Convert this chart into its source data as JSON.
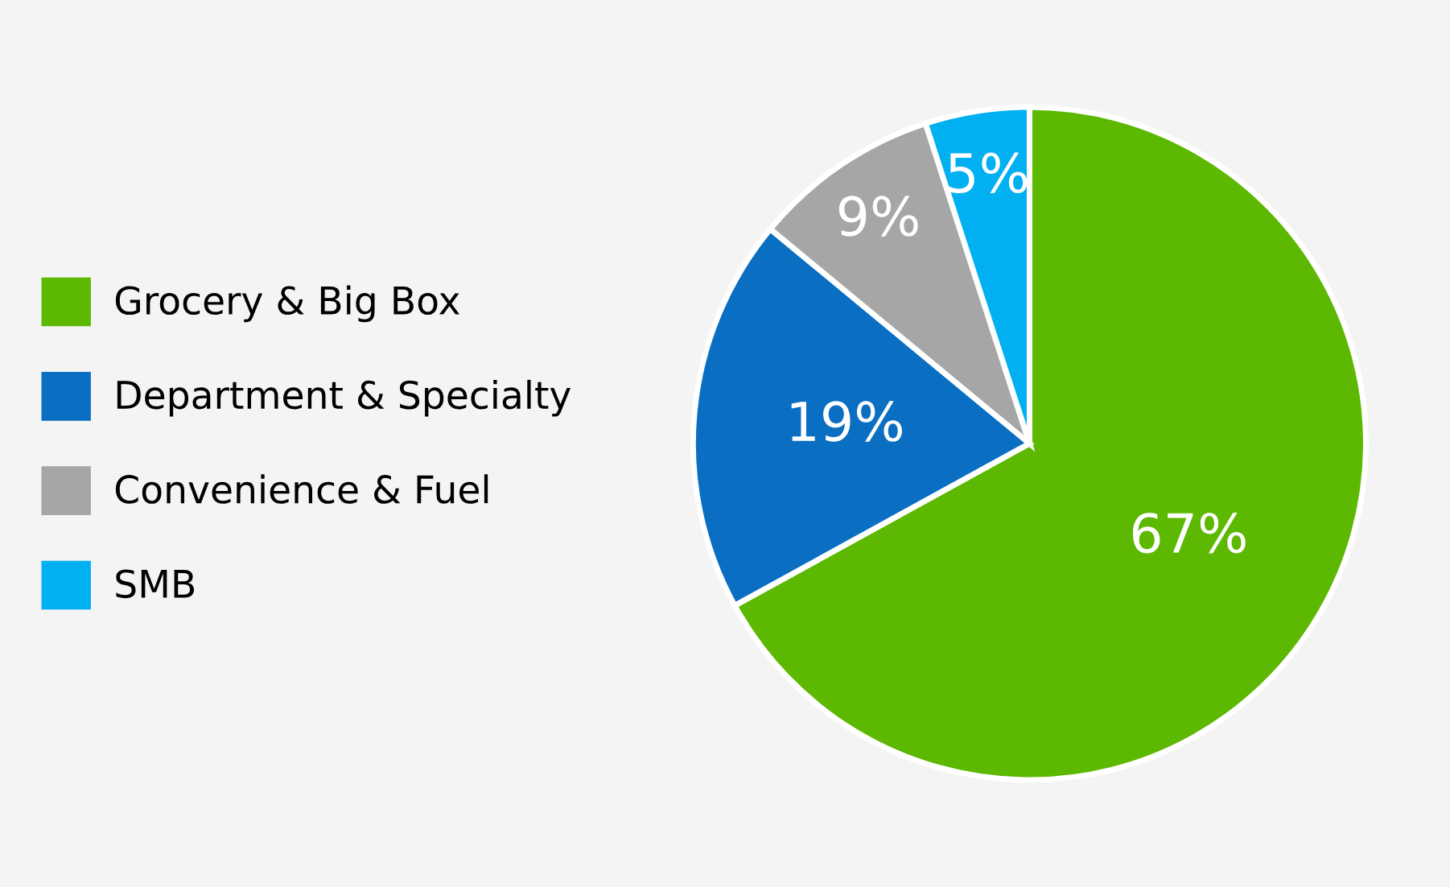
{
  "chart_data": {
    "type": "pie",
    "categories": [
      "Grocery & Big Box",
      "Department & Specialty",
      "Convenience & Fuel",
      "SMB"
    ],
    "values": [
      67,
      19,
      9,
      5
    ],
    "colors": [
      "#5cb800",
      "#0a6fc2",
      "#a6a6a6",
      "#00b0f0"
    ],
    "value_labels": [
      "67%",
      "19%",
      "9%",
      "5%"
    ],
    "legend": "left"
  }
}
